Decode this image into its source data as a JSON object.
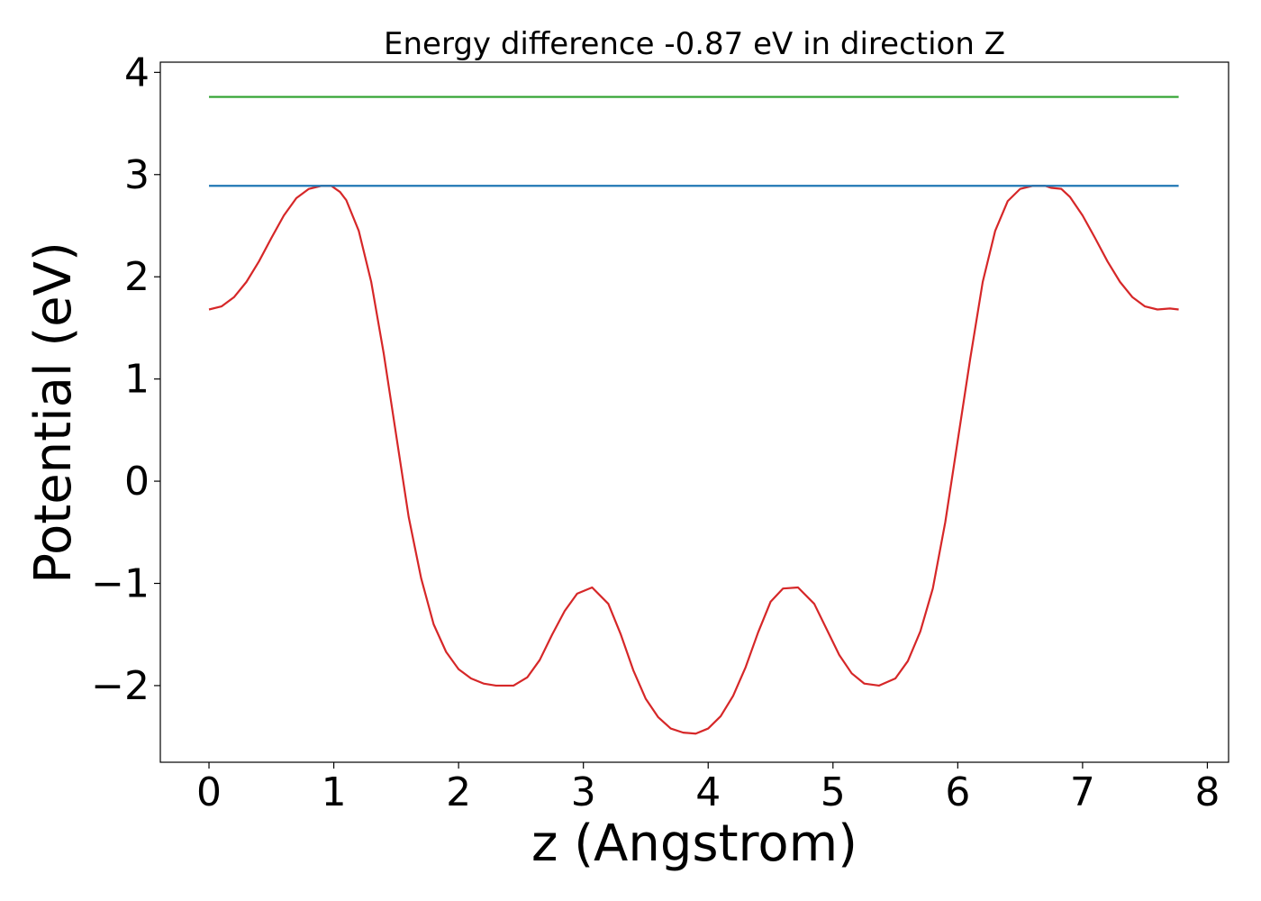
{
  "chart_data": {
    "type": "line",
    "title": "Energy difference -0.87 eV in direction Z",
    "xlabel": "z (Angstrom)",
    "ylabel": "Potential (eV)",
    "xlim": [
      -0.39,
      8.17
    ],
    "ylim": [
      -2.75,
      4.1
    ],
    "xticks": [
      0,
      1,
      2,
      3,
      4,
      5,
      6,
      7,
      8
    ],
    "xtick_labels": [
      "0",
      "1",
      "2",
      "3",
      "4",
      "5",
      "6",
      "7",
      "8"
    ],
    "yticks": [
      -2,
      -1,
      0,
      1,
      2,
      3,
      4
    ],
    "ytick_labels": [
      "−2",
      "−1",
      "0",
      "1",
      "2",
      "3",
      "4"
    ],
    "grid": false,
    "series": [
      {
        "color": "#d62728",
        "x": [
          0,
          0.1,
          0.2,
          0.3,
          0.4,
          0.5,
          0.6,
          0.7,
          0.8,
          0.9,
          0.98,
          1.05,
          1.1,
          1.2,
          1.3,
          1.4,
          1.5,
          1.6,
          1.7,
          1.8,
          1.9,
          2.0,
          2.1,
          2.2,
          2.3,
          2.44,
          2.55,
          2.65,
          2.75,
          2.85,
          2.95,
          3.07,
          3.2,
          3.3,
          3.4,
          3.5,
          3.6,
          3.7,
          3.8,
          3.9,
          4.0,
          4.1,
          4.2,
          4.3,
          4.4,
          4.5,
          4.6,
          4.72,
          4.85,
          4.95,
          5.05,
          5.15,
          5.25,
          5.37,
          5.5,
          5.6,
          5.7,
          5.8,
          5.9,
          6.0,
          6.1,
          6.2,
          6.3,
          6.4,
          6.5,
          6.6,
          6.7,
          6.75,
          6.83,
          6.9,
          7.0,
          7.1,
          7.2,
          7.3,
          7.4,
          7.5,
          7.6,
          7.7,
          7.77
        ],
        "y": [
          1.68,
          1.71,
          1.8,
          1.95,
          2.15,
          2.38,
          2.6,
          2.77,
          2.86,
          2.89,
          2.89,
          2.83,
          2.75,
          2.45,
          1.95,
          1.25,
          0.45,
          -0.35,
          -0.95,
          -1.4,
          -1.67,
          -1.84,
          -1.93,
          -1.98,
          -2.0,
          -2.0,
          -1.92,
          -1.75,
          -1.5,
          -1.27,
          -1.1,
          -1.04,
          -1.2,
          -1.5,
          -1.85,
          -2.13,
          -2.31,
          -2.42,
          -2.46,
          -2.47,
          -2.42,
          -2.3,
          -2.1,
          -1.82,
          -1.48,
          -1.18,
          -1.05,
          -1.04,
          -1.2,
          -1.45,
          -1.7,
          -1.88,
          -1.98,
          -2.0,
          -1.93,
          -1.76,
          -1.47,
          -1.05,
          -0.4,
          0.4,
          1.2,
          1.95,
          2.45,
          2.74,
          2.86,
          2.89,
          2.89,
          2.87,
          2.86,
          2.78,
          2.6,
          2.38,
          2.15,
          1.95,
          1.8,
          1.71,
          1.68,
          1.69,
          1.68
        ]
      },
      {
        "color": "#1f77b4",
        "x": [
          0,
          7.77
        ],
        "y": [
          2.89,
          2.89
        ]
      },
      {
        "color": "#2ca02c",
        "x": [
          0,
          7.77
        ],
        "y": [
          3.76,
          3.76
        ]
      }
    ]
  }
}
